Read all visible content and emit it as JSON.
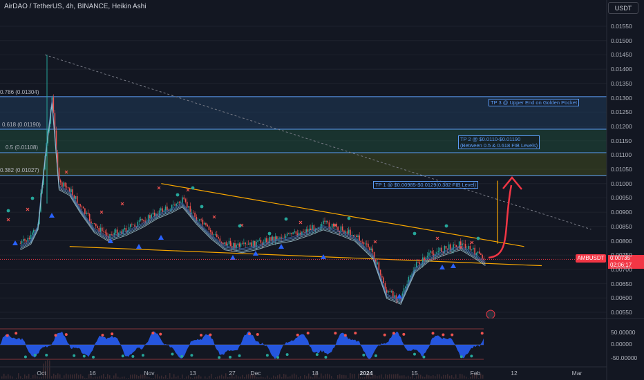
{
  "header": {
    "symbol_title": "AirDAO / TetherUS, 4h, BINANCE, Heikin Ashi",
    "currency_button": "USDT"
  },
  "y_axis": {
    "ticks": [
      "0.01550",
      "0.01500",
      "0.01450",
      "0.01400",
      "0.01350",
      "0.01300",
      "0.01250",
      "0.01200",
      "0.01150",
      "0.01100",
      "0.01050",
      "0.01000",
      "0.00950",
      "0.00900",
      "0.00850",
      "0.00800",
      "0.00750",
      "0.00700",
      "0.00650",
      "0.00600",
      "0.00550"
    ]
  },
  "oscillator_axis": {
    "ticks": [
      "50.00000",
      "0.00000",
      "-50.00000"
    ]
  },
  "x_axis": {
    "ticks": [
      {
        "label": "Oct",
        "bold": false
      },
      {
        "label": "16",
        "bold": false
      },
      {
        "label": "Nov",
        "bold": false
      },
      {
        "label": "13",
        "bold": false
      },
      {
        "label": "27",
        "bold": false
      },
      {
        "label": "Dec",
        "bold": false
      },
      {
        "label": "18",
        "bold": false
      },
      {
        "label": "2024",
        "bold": true
      },
      {
        "label": "15",
        "bold": false
      },
      {
        "label": "Feb",
        "bold": false
      },
      {
        "label": "12",
        "bold": false
      },
      {
        "label": "Mar",
        "bold": false
      }
    ]
  },
  "fib_levels": [
    {
      "label": "0.786 (0.01304)",
      "value": 0.01304
    },
    {
      "label": "0.618 (0.01190)",
      "value": 0.0119
    },
    {
      "label": "0.5 (0.01108)",
      "value": 0.01108
    },
    {
      "label": "0.382 (0.01027)",
      "value": 0.01027
    }
  ],
  "annotations": {
    "tp3": "TP 3 @ Upper End on Golden Pocket",
    "tp2_line1": "TP  2 @ $0.0110-$0.01190",
    "tp2_line2": "(Between 0.5 & 0.618 FIB Levels)",
    "tp1": "TP 1 @ $0.00985-$0.0129(0.382 FIB Level)"
  },
  "price_labels": {
    "symbol_tag": "AMBUSDT",
    "last_price": "0.00735",
    "countdown": "02:06:17"
  },
  "colors": {
    "background": "#131722",
    "grid": "#1e222d",
    "wedge_lines": "#f7a600",
    "fib_line": "#5b9cf6",
    "band_top": "#1f3a5a",
    "band_mid": "#1f4a3a",
    "band_low": "#3f4a1f",
    "bull": "#26a69a",
    "bear": "#ef5350",
    "oscillator_blue": "#2962ff",
    "price_tag": "#f23645",
    "arrow": "#f23645"
  },
  "chart_data": {
    "type": "line",
    "y_scale": {
      "min": 0.0055,
      "max": 0.0155
    },
    "series": [
      {
        "x": [
          "2023-09-25",
          "2023-09-28",
          "2023-09-30",
          "2023-10-02",
          "2023-10-04",
          "2023-10-06",
          "2023-10-09",
          "2023-10-12",
          "2023-10-16",
          "2023-10-20",
          "2023-10-25",
          "2023-10-30",
          "2023-11-03",
          "2023-11-07",
          "2023-11-10",
          "2023-11-14",
          "2023-11-18",
          "2023-11-22",
          "2023-11-27",
          "2023-12-01",
          "2023-12-06",
          "2023-12-11",
          "2023-12-16",
          "2023-12-20",
          "2023-12-25",
          "2023-12-29",
          "2024-01-03",
          "2024-01-07",
          "2024-01-11",
          "2024-01-15",
          "2024-01-19",
          "2024-01-23",
          "2024-01-28",
          "2024-02-01",
          "2024-02-04"
        ],
        "values": [
          0.0079,
          0.0081,
          0.0086,
          0.011,
          0.013,
          0.01,
          0.0098,
          0.0092,
          0.0085,
          0.0082,
          0.0084,
          0.0087,
          0.009,
          0.0092,
          0.0094,
          0.0088,
          0.0083,
          0.0079,
          0.0078,
          0.0079,
          0.0081,
          0.0082,
          0.0084,
          0.0086,
          0.0084,
          0.0082,
          0.0076,
          0.0062,
          0.006,
          0.0071,
          0.0075,
          0.0077,
          0.0079,
          0.0076,
          0.00735
        ]
      }
    ],
    "wedge_top": {
      "x": [
        "2023-11-04",
        "2024-02-15"
      ],
      "y": [
        0.01,
        0.0078
      ]
    },
    "wedge_bottom": {
      "x": [
        "2023-10-09",
        "2024-02-20"
      ],
      "y": [
        0.0078,
        0.00713
      ]
    },
    "trend_dashed": {
      "x": [
        "2023-10-02",
        "2024-03-05"
      ],
      "y": [
        0.0145,
        0.0084
      ]
    }
  }
}
